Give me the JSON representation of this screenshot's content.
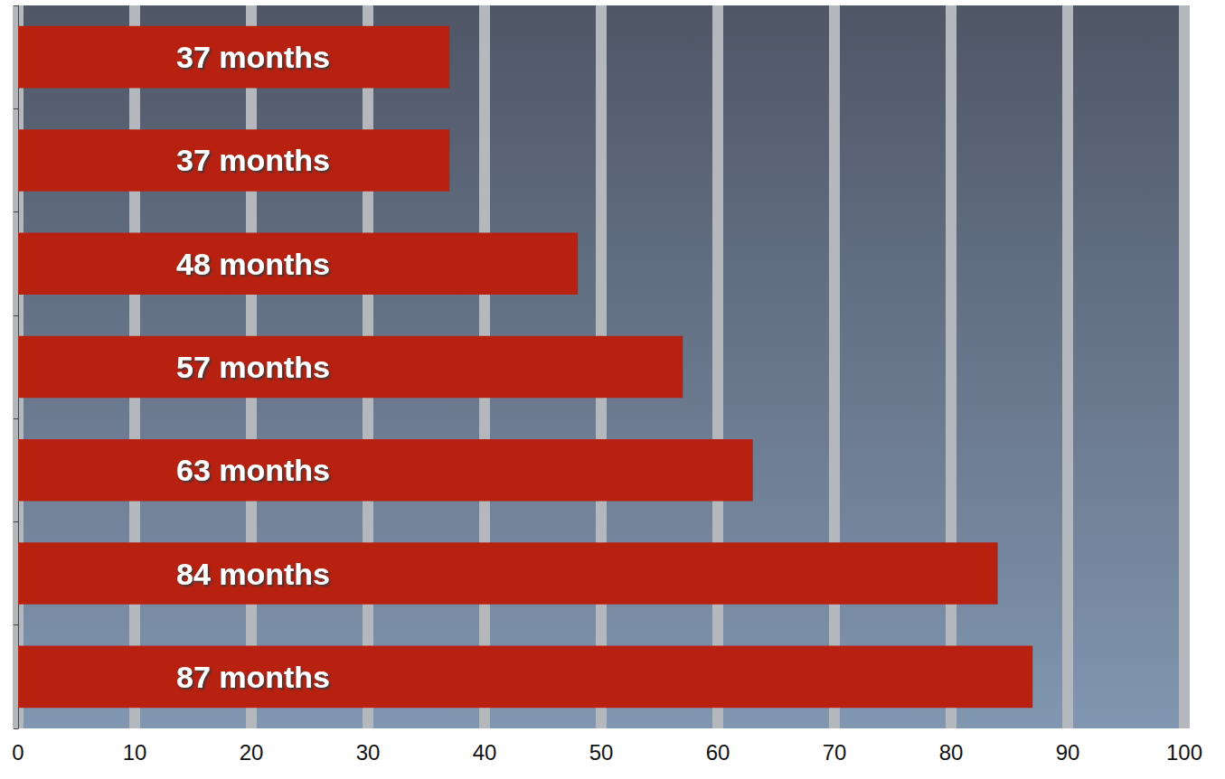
{
  "chart_data": {
    "type": "bar",
    "orientation": "horizontal",
    "categories": [
      null,
      null,
      null,
      null,
      null,
      null,
      null
    ],
    "values": [
      37,
      37,
      48,
      57,
      63,
      84,
      87
    ],
    "value_labels": [
      "37 months",
      "37 months",
      "48 months",
      "57 months",
      "63 months",
      "84 months",
      "87 months"
    ],
    "data_labels": true,
    "color": "#b82010",
    "xlim": [
      0,
      100
    ],
    "xticks": [
      0,
      10,
      20,
      30,
      40,
      50,
      60,
      70,
      80,
      90,
      100
    ],
    "grid": true,
    "tick_labels": "x"
  }
}
